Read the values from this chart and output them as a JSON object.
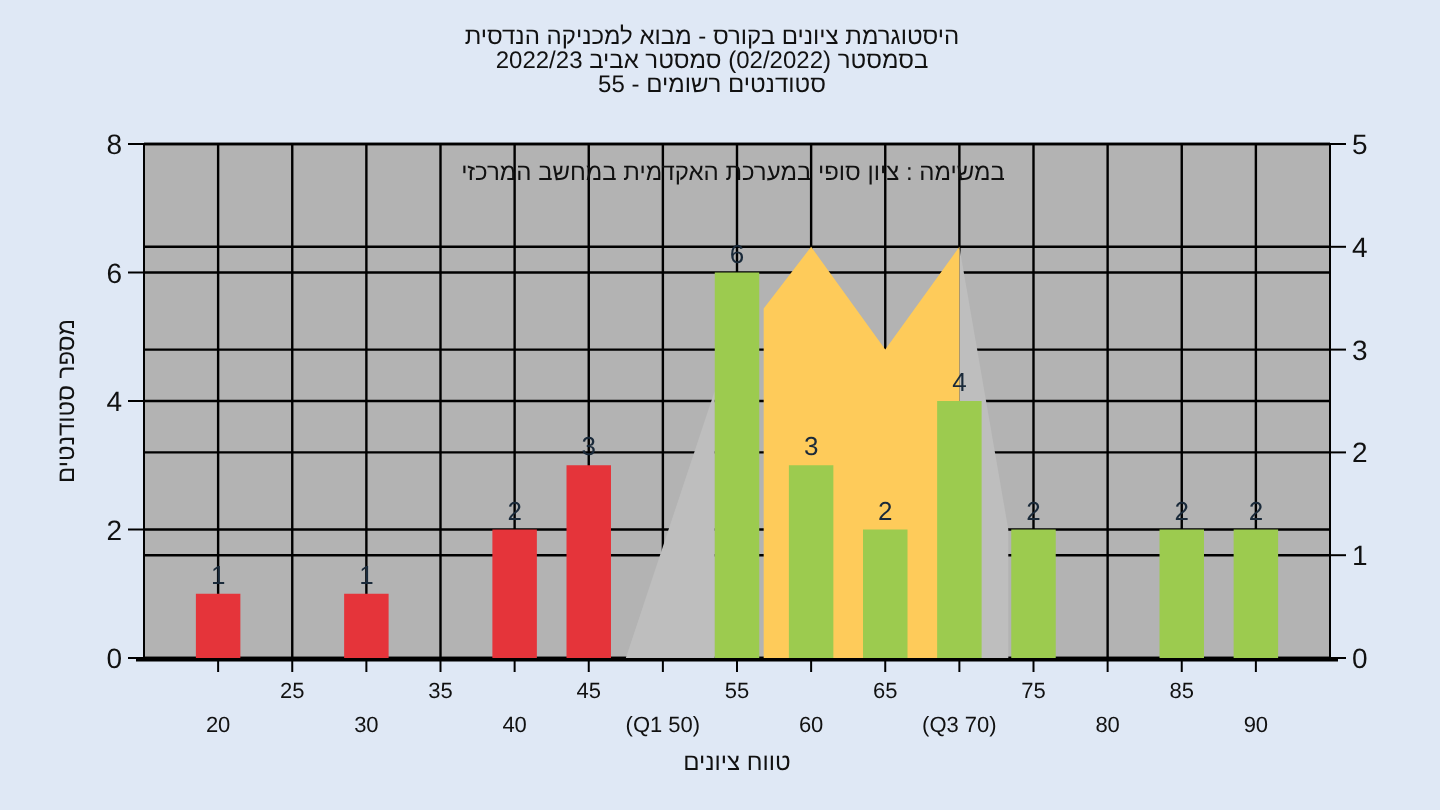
{
  "chart_data": {
    "type": "bar",
    "title": "היסטוגרמת ציונים בקורס - מבוא למכניקה הנדסית",
    "subtitle": "בסמסטר  (02/2022)  סמסטר אביב 2022/23",
    "annotations": [
      "סטודנטים רשומים - 55",
      "במשימה : ציון סופי במערכת האקדמית במחשב המרכזי"
    ],
    "xlabel": "טווח ציונים",
    "ylabel": "מספר סטודנטים",
    "xlim": [
      15,
      95
    ],
    "xticks": [
      20,
      30,
      40,
      {
        "value": 50,
        "label": "(Q1 50)"
      },
      60,
      {
        "value": 70,
        "label": "(Q3 70)"
      },
      80,
      90
    ],
    "x2lim": [
      15,
      95
    ],
    "x2ticks": [
      25,
      35,
      45,
      55,
      65,
      75,
      85
    ],
    "ylim": [
      0,
      8
    ],
    "yticks": [
      0,
      2,
      4,
      6,
      8
    ],
    "y2lim": [
      0,
      5
    ],
    "y2ticks": [
      0,
      1,
      2,
      3,
      4,
      5
    ],
    "grid": true,
    "series": [
      {
        "type": "area",
        "axis": "y2",
        "color": "#bebebe",
        "x": [
          47.5,
          53.5
        ],
        "values": [
          0,
          2.6
        ]
      },
      {
        "type": "area",
        "axis": "y2",
        "color": "#bebebe",
        "x": [
          70,
          73.3
        ],
        "values": [
          4,
          1.25
        ]
      },
      {
        "type": "area",
        "axis": "y2",
        "color": "#fecb5a",
        "x": [
          56.8,
          60,
          65,
          70
        ],
        "values": [
          3.4,
          4,
          3,
          4
        ]
      },
      {
        "x": [
          20,
          30,
          40,
          45,
          55,
          60,
          65,
          70,
          75,
          85,
          90
        ],
        "values": [
          1,
          1,
          2,
          3,
          6,
          3,
          2,
          4,
          2,
          2,
          2
        ],
        "value_labels": [
          "1",
          "1",
          "2",
          "3",
          "6",
          "3",
          "2",
          "4",
          "2",
          "2",
          "2"
        ],
        "colors": [
          "#e5343a",
          "#e5343a",
          "#e5343a",
          "#e5343a",
          "#9ccb4f",
          "#9ccb4f",
          "#9ccb4f",
          "#9ccb4f",
          "#9ccb4f",
          "#9ccb4f",
          "#9ccb4f"
        ]
      }
    ]
  }
}
